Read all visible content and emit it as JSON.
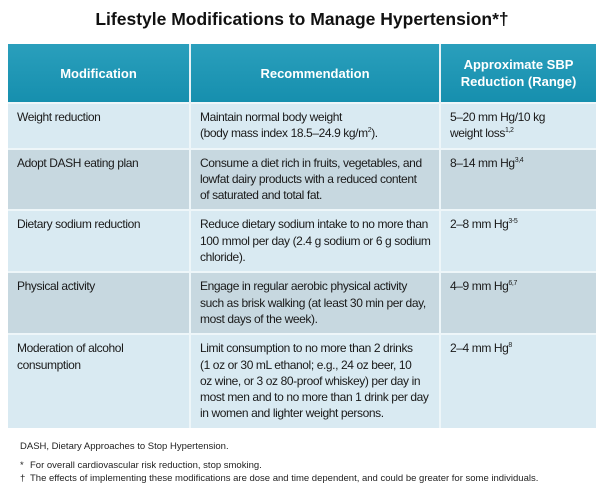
{
  "title": "Lifestyle Modifications to Manage Hypertension*†",
  "headers": [
    "Modification",
    "Recommendation",
    "Approximate SBP\nReduction (Range)"
  ],
  "rows": [
    {
      "modification": "Weight reduction",
      "recommendation": "Maintain normal body weight\n(body mass index 18.5–24.9 kg/m",
      "rec_sup": "2",
      "rec_tail": ").",
      "reduction": "5–20 mm Hg/10 kg\nweight loss",
      "ref": "1,2"
    },
    {
      "modification": "Adopt DASH eating plan",
      "recommendation": "Consume a diet rich in fruits, vegetables, and\nlowfat dairy products with a reduced content\nof saturated and total fat.",
      "reduction": "8–14 mm Hg",
      "ref": "3,4"
    },
    {
      "modification": "Dietary sodium reduction",
      "recommendation": "Reduce dietary sodium intake to no more than\n100 mmol per day (2.4 g sodium or 6 g sodium\nchloride).",
      "reduction": "2–8 mm Hg",
      "ref": "3-5"
    },
    {
      "modification": "Physical activity",
      "recommendation": "Engage in regular aerobic physical activity\nsuch as brisk walking (at least 30 min per day,\nmost days of the week).",
      "reduction": "4–9 mm Hg",
      "ref": "6,7"
    },
    {
      "modification": "Moderation of alcohol consumption",
      "recommendation": "Limit consumption to no more than 2 drinks\n(1 oz or 30 mL ethanol; e.g., 24 oz beer, 10\noz wine, or 3 oz 80-proof whiskey) per day in\nmost men and to no more than 1 drink per day\nin women and lighter weight persons.",
      "reduction": "2–4 mm Hg",
      "ref": "8"
    }
  ],
  "notes": {
    "abbrev": "DASH, Dietary Approaches to Stop Hypertension.",
    "star_mark": "*",
    "star": "For overall cardiovascular risk reduction, stop smoking.",
    "dagger_mark": "†",
    "dagger": "The effects of implementing these modifications are dose and time dependent, and could be greater for some individuals."
  },
  "colors": {
    "header": "#1e96b4",
    "row_light": "#d9eaf2",
    "row_dark": "#c7d8e0"
  }
}
